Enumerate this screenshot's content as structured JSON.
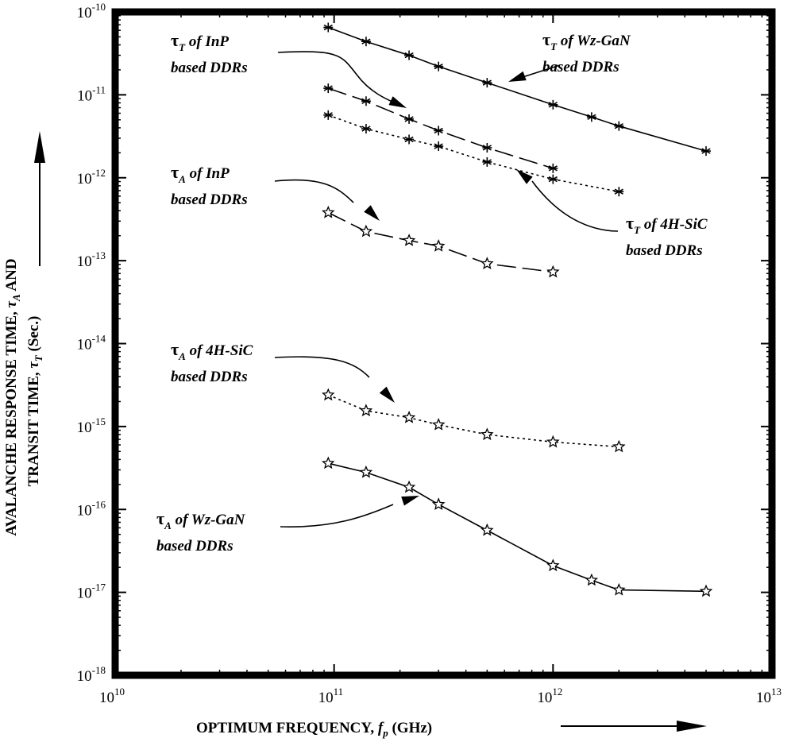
{
  "chart_data": {
    "type": "line",
    "x_scale": "log",
    "y_scale": "log",
    "xlim": [
      10000000000.0,
      10000000000000.0
    ],
    "ylim": [
      1e-18,
      1e-10
    ],
    "xlabel": {
      "main": "OPTIMUM FREQUENCY, ",
      "symbol": "f",
      "sub": "p",
      "unit": " (GHz)"
    },
    "ylabel": {
      "line1": "AVALANCHE RESPONSE TIME, ",
      "line1_symbol": "τ",
      "line1_sub": "A",
      "line1_end": " AND",
      "line2": "TRANSIT TIME, ",
      "line2_symbol": "τ",
      "line2_sub": "T",
      "line2_end": " (Sec.)"
    },
    "x_ticks": [
      {
        "base": "10",
        "exp": "10"
      },
      {
        "base": "10",
        "exp": "11"
      },
      {
        "base": "10",
        "exp": "12"
      },
      {
        "base": "10",
        "exp": "13"
      }
    ],
    "y_ticks": [
      {
        "base": "10",
        "exp": "-10"
      },
      {
        "base": "10",
        "exp": "-11"
      },
      {
        "base": "10",
        "exp": "-12"
      },
      {
        "base": "10",
        "exp": "-13"
      },
      {
        "base": "10",
        "exp": "-14"
      },
      {
        "base": "10",
        "exp": "-15"
      },
      {
        "base": "10",
        "exp": "-16"
      },
      {
        "base": "10",
        "exp": "-17"
      },
      {
        "base": "10",
        "exp": "-18"
      }
    ],
    "grid": false,
    "series": [
      {
        "key": "tauT-wzgan",
        "style": "solid",
        "marker": "star6",
        "x": [
          94000000000.0,
          140000000000.0,
          220000000000.0,
          300000000000.0,
          500000000000.0,
          1000000000000.0,
          1500000000000.0,
          2000000000000.0,
          5000000000000.0
        ],
        "y": [
          6.5e-11,
          4.4e-11,
          3e-11,
          2.2e-11,
          1.4e-11,
          7.6e-12,
          5.4e-12,
          4.2e-12,
          2.1e-12
        ]
      },
      {
        "key": "tauT-inp",
        "style": "dashed",
        "marker": "star6",
        "x": [
          94000000000.0,
          140000000000.0,
          220000000000.0,
          300000000000.0,
          500000000000.0,
          1000000000000.0
        ],
        "y": [
          1.2e-11,
          8.4e-12,
          5.1e-12,
          3.7e-12,
          2.3e-12,
          1.3e-12
        ]
      },
      {
        "key": "tauT-4hsic",
        "style": "dotted",
        "marker": "star6",
        "x": [
          94000000000.0,
          140000000000.0,
          220000000000.0,
          300000000000.0,
          500000000000.0,
          1000000000000.0,
          2000000000000.0
        ],
        "y": [
          5.7e-12,
          3.9e-12,
          2.9e-12,
          2.4e-12,
          1.55e-12,
          9.6e-13,
          6.8e-13
        ]
      },
      {
        "key": "tauA-inp",
        "style": "dashed",
        "marker": "star5",
        "x": [
          94000000000.0,
          140000000000.0,
          220000000000.0,
          300000000000.0,
          500000000000.0,
          1000000000000.0
        ],
        "y": [
          3.8e-13,
          2.25e-13,
          1.75e-13,
          1.5e-13,
          9.2e-14,
          7.3e-14
        ]
      },
      {
        "key": "tauA-4hsic",
        "style": "dotted",
        "marker": "star5",
        "x": [
          94000000000.0,
          140000000000.0,
          220000000000.0,
          300000000000.0,
          500000000000.0,
          1000000000000.0,
          2000000000000.0
        ],
        "y": [
          2.4e-15,
          1.55e-15,
          1.28e-15,
          1.05e-15,
          8e-16,
          6.5e-16,
          5.7e-16
        ]
      },
      {
        "key": "tauA-wzgan",
        "style": "solid",
        "marker": "star5",
        "x": [
          94000000000.0,
          140000000000.0,
          220000000000.0,
          300000000000.0,
          500000000000.0,
          1000000000000.0,
          1500000000000.0,
          2000000000000.0,
          5000000000000.0
        ],
        "y": [
          3.6e-16,
          2.8e-16,
          1.85e-16,
          1.15e-16,
          5.6e-17,
          2.1e-17,
          1.4e-17,
          1.07e-17,
          1.03e-17
        ]
      }
    ],
    "annotations": [
      {
        "key": "tauT-inp",
        "symbol": "τ",
        "sub": "T",
        "text1": " of InP",
        "text2": "based DDRs"
      },
      {
        "key": "tauT-wzgan",
        "symbol": "τ",
        "sub": "T",
        "text1": " of Wz-GaN",
        "text2": "based DDRs"
      },
      {
        "key": "tauA-inp",
        "symbol": "τ",
        "sub": "A",
        "text1": " of InP",
        "text2": "based DDRs"
      },
      {
        "key": "tauT-4hsic",
        "symbol": "τ",
        "sub": "T",
        "text1": " of 4H-SiC",
        "text2": "based DDRs"
      },
      {
        "key": "tauA-4hsic",
        "symbol": "τ",
        "sub": "A",
        "text1": " of 4H-SiC",
        "text2": "based DDRs"
      },
      {
        "key": "tauA-wzgan",
        "symbol": "τ",
        "sub": "A",
        "text1": " of Wz-GaN",
        "text2": "based DDRs"
      }
    ]
  }
}
